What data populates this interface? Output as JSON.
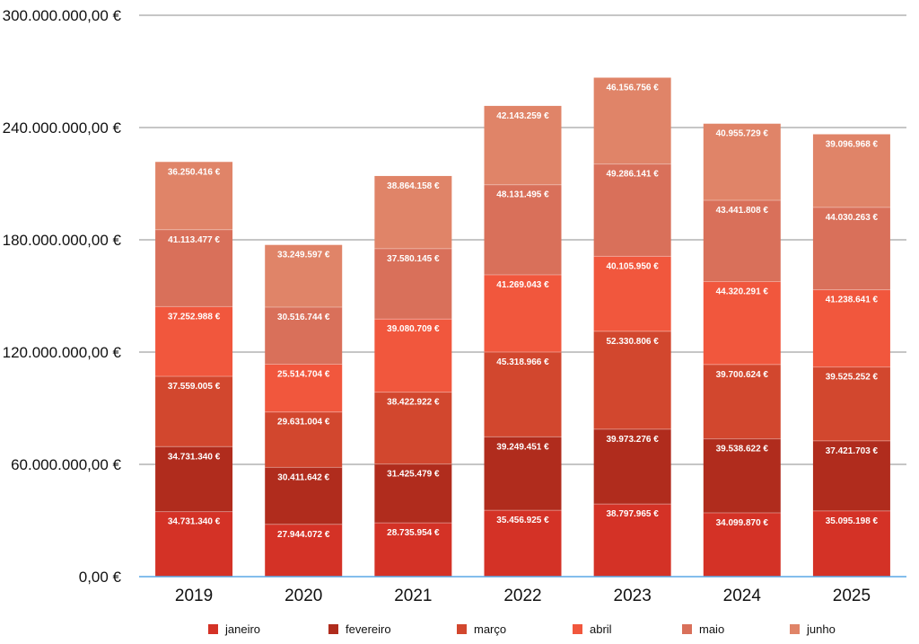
{
  "chart_data": {
    "type": "bar",
    "stacked": true,
    "categories": [
      "2019",
      "2020",
      "2021",
      "2022",
      "2023",
      "2024",
      "2025"
    ],
    "ylim": [
      0,
      300000000
    ],
    "yticks": [
      0,
      60000000,
      120000000,
      180000000,
      240000000,
      300000000
    ],
    "ytick_labels": [
      "0,00 €",
      "60.000.000,00 €",
      "120.000.000,00 €",
      "180.000.000,00 €",
      "240.000.000,00 €",
      "300.000.000,00 €"
    ],
    "grid": true,
    "legend_position": "bottom",
    "series": [
      {
        "name": "janeiro",
        "color": "#d43226",
        "values": [
          34731340,
          27944072,
          28735954,
          35456925,
          38797965,
          34099870,
          35095198
        ],
        "labels": [
          "34.731.340 €",
          "27.944.072 €",
          "28.735.954 €",
          "35.456.925 €",
          "38.797.965 €",
          "34.099.870 €",
          "35.095.198 €"
        ]
      },
      {
        "name": "fevereiro",
        "color": "#b02c1d",
        "values": [
          34731340,
          30411642,
          31425479,
          39249451,
          39973276,
          39538622,
          37421703
        ],
        "labels": [
          "34.731.340 €",
          "30.411.642 €",
          "31.425.479 €",
          "39.249.451 €",
          "39.973.276 €",
          "39.538.622 €",
          "37.421.703 €"
        ]
      },
      {
        "name": "março",
        "color": "#d2472e",
        "values": [
          37559005,
          29631004,
          38422922,
          45318966,
          52330806,
          39700624,
          39525252
        ],
        "labels": [
          "37.559.005 €",
          "29.631.004 €",
          "38.422.922 €",
          "45.318.966 €",
          "52.330.806 €",
          "39.700.624 €",
          "39.525.252 €"
        ]
      },
      {
        "name": "abril",
        "color": "#f1573d",
        "values": [
          37252988,
          25514704,
          39080709,
          41269043,
          40105950,
          44320291,
          41238641
        ],
        "labels": [
          "37.252.988 €",
          "25.514.704 €",
          "39.080.709 €",
          "41.269.043 €",
          "40.105.950 €",
          "44.320.291 €",
          "41.238.641 €"
        ]
      },
      {
        "name": "maio",
        "color": "#d9705a",
        "values": [
          41113477,
          30516744,
          37580145,
          48131495,
          49286141,
          43441808,
          44030263
        ],
        "labels": [
          "41.113.477 €",
          "30.516.744 €",
          "37.580.145 €",
          "48.131.495 €",
          "49.286.141 €",
          "43.441.808 €",
          "44.030.263 €"
        ]
      },
      {
        "name": "junho",
        "color": "#e08468",
        "values": [
          36250416,
          33249597,
          38864158,
          42143259,
          46156756,
          40955729,
          39096968
        ],
        "labels": [
          "36.250.416 €",
          "33.249.597 €",
          "38.864.158 €",
          "42.143.259 €",
          "46.156.756 €",
          "40.955.729 €",
          "39.096.968 €"
        ]
      }
    ]
  }
}
